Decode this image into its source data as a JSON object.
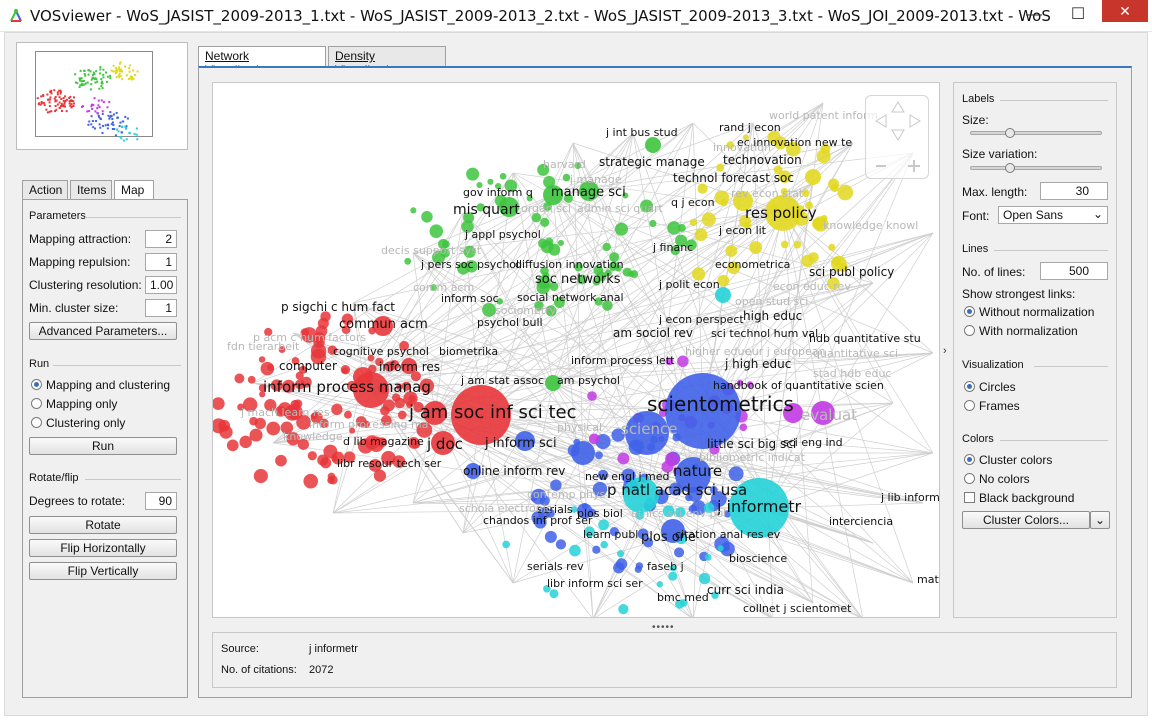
{
  "window": {
    "title": "VOSviewer - WoS_JASIST_2009-2013_1.txt - WoS_JASIST_2009-2013_2.txt - WoS_JASIST_2009-2013_3.txt - WoS_JOI_2009-2013.txt - WoS_Scientometrics_...",
    "minimize": "—",
    "maximize": "☐",
    "close": "✕"
  },
  "left_tabs": [
    "Action",
    "Items",
    "Map"
  ],
  "parameters": {
    "header": "Parameters",
    "mapping_attraction_label": "Mapping attraction:",
    "mapping_attraction": "2",
    "mapping_repulsion_label": "Mapping repulsion:",
    "mapping_repulsion": "1",
    "clustering_resolution_label": "Clustering resolution:",
    "clustering_resolution": "1.00",
    "min_cluster_size_label": "Min. cluster size:",
    "min_cluster_size": "1",
    "advanced_button": "Advanced Parameters..."
  },
  "run": {
    "header": "Run",
    "options": [
      "Mapping and clustering",
      "Mapping only",
      "Clustering only"
    ],
    "selected": 0,
    "run_button": "Run"
  },
  "rotate": {
    "header": "Rotate/flip",
    "degrees_label": "Degrees to rotate:",
    "degrees": "90",
    "rotate_button": "Rotate",
    "flip_h_button": "Flip Horizontally",
    "flip_v_button": "Flip Vertically"
  },
  "viz_tabs": [
    "Network Visualization",
    "Density Visualization"
  ],
  "map_labels": [
    {
      "t": "world patent inform",
      "c": "faint",
      "s": 11
    },
    {
      "t": "rand j econ",
      "c": "",
      "s": 11
    },
    {
      "t": "ec innovation new te",
      "c": "",
      "s": 11
    },
    {
      "t": "j int bus stud",
      "c": "",
      "s": 11
    },
    {
      "t": "innovation",
      "c": "faint",
      "s": 11
    },
    {
      "t": "harvard",
      "c": "faint",
      "s": 11
    },
    {
      "t": "strategic manage",
      "c": "",
      "s": 12
    },
    {
      "t": "technovation",
      "c": "",
      "s": 12
    },
    {
      "t": "j manage",
      "c": "faint",
      "s": 11
    },
    {
      "t": "technol forecast soc",
      "c": "",
      "s": 12
    },
    {
      "t": "gov inform q",
      "c": "",
      "s": 11
    },
    {
      "t": "manage sci",
      "c": "",
      "s": 13
    },
    {
      "t": "rev econ stat",
      "c": "faint",
      "s": 11
    },
    {
      "t": "q j econ",
      "c": "",
      "s": 11
    },
    {
      "t": "mis quart",
      "c": "",
      "s": 14
    },
    {
      "t": "organ sci",
      "c": "faint",
      "s": 11
    },
    {
      "t": "admin sci quart",
      "c": "faint",
      "s": 11
    },
    {
      "t": "res policy",
      "c": "",
      "s": 15
    },
    {
      "t": "j appl psychol",
      "c": "",
      "s": 11
    },
    {
      "t": "j econ lit",
      "c": "",
      "s": 11
    },
    {
      "t": "knowledge knowl",
      "c": "faint",
      "s": 11
    },
    {
      "t": "decis support syst",
      "c": "faint",
      "s": 11
    },
    {
      "t": "j financ",
      "c": "",
      "s": 11
    },
    {
      "t": "j pers soc psychol",
      "c": "",
      "s": 11
    },
    {
      "t": "diffusion innovation",
      "c": "",
      "s": 11
    },
    {
      "t": "econometrica",
      "c": "",
      "s": 11
    },
    {
      "t": "soc networks",
      "c": "",
      "s": 13
    },
    {
      "t": "sci publ policy",
      "c": "",
      "s": 12
    },
    {
      "t": "j polit econ",
      "c": "",
      "s": 11
    },
    {
      "t": "comm acm",
      "c": "faint",
      "s": 11
    },
    {
      "t": "inform soc",
      "c": "",
      "s": 11
    },
    {
      "t": "social network anal",
      "c": "",
      "s": 11
    },
    {
      "t": "econ educ rev",
      "c": "faint",
      "s": 11
    },
    {
      "t": "p sigchi c hum fact",
      "c": "",
      "s": 12
    },
    {
      "t": "sociometry",
      "c": "faint",
      "s": 11
    },
    {
      "t": "open stud sci",
      "c": "faint",
      "s": 11
    },
    {
      "t": "psychol bull",
      "c": "",
      "s": 11
    },
    {
      "t": "j econ perspect",
      "c": "",
      "s": 11
    },
    {
      "t": "high educ",
      "c": "",
      "s": 12
    },
    {
      "t": "commun acm",
      "c": "",
      "s": 13
    },
    {
      "t": "am sociol rev",
      "c": "",
      "s": 12
    },
    {
      "t": "sci technol hum val",
      "c": "",
      "s": 11
    },
    {
      "t": "hdb quantitative stu",
      "c": "",
      "s": 11
    },
    {
      "t": "p acm c hum factors",
      "c": "faint",
      "s": 11
    },
    {
      "t": "cognitive psychol",
      "c": "",
      "s": 11
    },
    {
      "t": "biometrika",
      "c": "",
      "s": 11
    },
    {
      "t": "higher educ",
      "c": "faint",
      "s": 11
    },
    {
      "t": "eur j european",
      "c": "faint",
      "s": 11
    },
    {
      "t": "quantitative sci",
      "c": "faint",
      "s": 11
    },
    {
      "t": "fdn tierarbeit",
      "c": "faint",
      "s": 11
    },
    {
      "t": "computer",
      "c": "",
      "s": 12
    },
    {
      "t": "inform process lett",
      "c": "",
      "s": 11
    },
    {
      "t": "j high educ",
      "c": "",
      "s": 12
    },
    {
      "t": "stad hdb educ",
      "c": "faint",
      "s": 11
    },
    {
      "t": "inform res",
      "c": "",
      "s": 12
    },
    {
      "t": "j am stat assoc",
      "c": "",
      "s": 11
    },
    {
      "t": "am psychol",
      "c": "",
      "s": 11
    },
    {
      "t": "handbook of quantitative scien",
      "c": "",
      "s": 11
    },
    {
      "t": "inform process manag",
      "c": "",
      "s": 15
    },
    {
      "t": "scientometrics",
      "c": "",
      "s": 20
    },
    {
      "t": "j mach learn res",
      "c": "faint",
      "s": 11
    },
    {
      "t": "j am soc inf sci tec",
      "c": "",
      "s": 18
    },
    {
      "t": "evaluat",
      "c": "faint",
      "s": 15
    },
    {
      "t": "inform processing ma",
      "c": "faint",
      "s": 11
    },
    {
      "t": "science",
      "c": "faint",
      "s": 15
    },
    {
      "t": "knowledge",
      "c": "faint",
      "s": 11
    },
    {
      "t": "physical",
      "c": "faint",
      "s": 11
    },
    {
      "t": "d lib magazine",
      "c": "",
      "s": 11
    },
    {
      "t": "j doc",
      "c": "",
      "s": 15
    },
    {
      "t": "j inform sci",
      "c": "",
      "s": 13
    },
    {
      "t": "little sci big sci",
      "c": "",
      "s": 12
    },
    {
      "t": "sci eng ind",
      "c": "",
      "s": 11
    },
    {
      "t": "bibliometric indicat",
      "c": "faint",
      "s": 11
    },
    {
      "t": "libr resour tech ser",
      "c": "",
      "s": 11
    },
    {
      "t": "online inform rev",
      "c": "",
      "s": 12
    },
    {
      "t": "nature",
      "c": "",
      "s": 15
    },
    {
      "t": "new engl j med",
      "c": "",
      "s": 11
    },
    {
      "t": "p natl acad sci usa",
      "c": "",
      "s": 15
    },
    {
      "t": "contemp phys",
      "c": "faint",
      "s": 11
    },
    {
      "t": "j lib inform",
      "c": "",
      "s": 11
    },
    {
      "t": "j informetr",
      "c": "",
      "s": 16
    },
    {
      "t": "serials",
      "c": "",
      "s": 11
    },
    {
      "t": "schola electronic",
      "c": "faint",
      "s": 11
    },
    {
      "t": "plos biol",
      "c": "",
      "s": 11
    },
    {
      "t": "ethics sci env pol",
      "c": "faint",
      "s": 11
    },
    {
      "t": "chandos inf prof ser",
      "c": "",
      "s": 11
    },
    {
      "t": "interciencia",
      "c": "",
      "s": 11
    },
    {
      "t": "plos one",
      "c": "",
      "s": 13
    },
    {
      "t": "learn publ",
      "c": "",
      "s": 11
    },
    {
      "t": "citation anal res ev",
      "c": "",
      "s": 11
    },
    {
      "t": "bioscience",
      "c": "",
      "s": 11
    },
    {
      "t": "serials rev",
      "c": "",
      "s": 11
    },
    {
      "t": "faseb j",
      "c": "",
      "s": 11
    },
    {
      "t": "libr inform sci ser",
      "c": "",
      "s": 11
    },
    {
      "t": "curr sci india",
      "c": "",
      "s": 12
    },
    {
      "t": "math",
      "c": "",
      "s": 11
    },
    {
      "t": "bmc med",
      "c": "",
      "s": 11
    },
    {
      "t": "collnet j scientomet",
      "c": "",
      "s": 11
    }
  ],
  "labels_panel": {
    "header": "Labels",
    "size_label": "Size:",
    "size": 0.3,
    "variation_label": "Size variation:",
    "variation": 0.3,
    "max_length_label": "Max. length:",
    "max_length": "30",
    "font_label": "Font:",
    "font": "Open Sans"
  },
  "lines_panel": {
    "header": "Lines",
    "num_lines_label": "No. of lines:",
    "num_lines": "500",
    "strongest_label": "Show strongest links:",
    "options": [
      "Without normalization",
      "With normalization"
    ],
    "selected": 0
  },
  "visualization_panel": {
    "header": "Visualization",
    "options": [
      "Circles",
      "Frames"
    ],
    "selected": 0
  },
  "colors_panel": {
    "header": "Colors",
    "options": [
      "Cluster colors",
      "No colors"
    ],
    "selected": 0,
    "black_background": "Black background",
    "cluster_colors_button": "Cluster Colors..."
  },
  "info": {
    "source_label": "Source:",
    "source": "j informetr",
    "citations_label": "No. of citations:",
    "citations": "2072"
  },
  "colors": {
    "red": "#e8363a",
    "green": "#3ec43e",
    "blue": "#3f62e8",
    "yellow": "#e2d81f",
    "purple": "#c23ae3",
    "cyan": "#24d2d8",
    "accent": "#3b78c2"
  },
  "icons": {
    "app": "vosviewer-logo-icon",
    "splitter": "grip-dots-icon",
    "expand": "chevron-right-icon"
  }
}
